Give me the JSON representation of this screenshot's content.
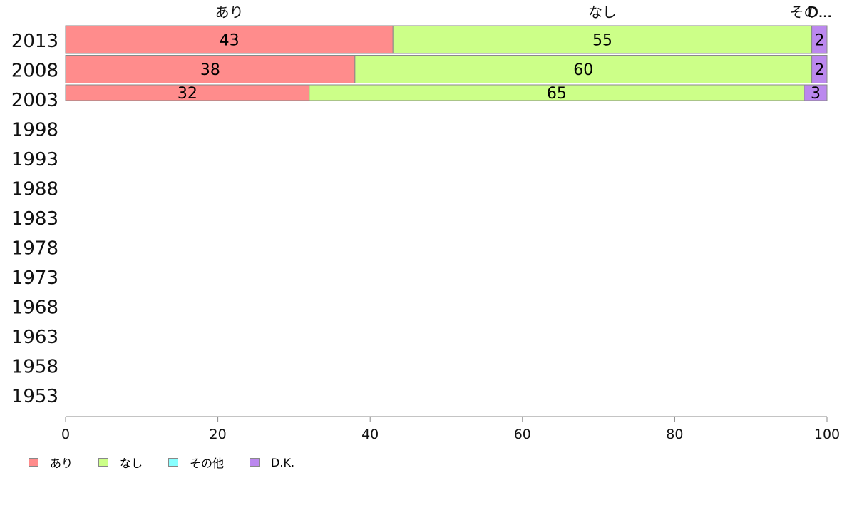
{
  "chart_data": {
    "type": "bar",
    "orientation": "horizontal",
    "stacked": true,
    "categories": [
      "2013",
      "2008",
      "2003",
      "1998",
      "1993",
      "1988",
      "1983",
      "1978",
      "1973",
      "1968",
      "1963",
      "1958",
      "1953"
    ],
    "series": [
      {
        "name": "あり",
        "color": "#ff8c8c",
        "values": [
          43,
          38,
          32,
          null,
          null,
          null,
          null,
          null,
          null,
          null,
          null,
          null,
          null
        ],
        "labels": [
          "43",
          "38",
          "32"
        ]
      },
      {
        "name": "なし",
        "color": "#ccff88",
        "values": [
          55,
          60,
          65,
          null,
          null,
          null,
          null,
          null,
          null,
          null,
          null,
          null,
          null
        ],
        "labels": [
          "55",
          "60",
          "65"
        ]
      },
      {
        "name": "その他",
        "color": "#88ffff",
        "values": [
          0,
          0,
          0,
          null,
          null,
          null,
          null,
          null,
          null,
          null,
          null,
          null,
          null
        ],
        "labels": []
      },
      {
        "name": "D.K.",
        "color": "#bb88ee",
        "values": [
          2,
          2,
          3,
          null,
          null,
          null,
          null,
          null,
          null,
          null,
          null,
          null,
          null
        ],
        "labels": [
          "2",
          "2",
          "3"
        ]
      }
    ],
    "top_labels": [
      "あり",
      "なし",
      "その...",
      "D..."
    ],
    "xlim": [
      0,
      100
    ],
    "xticks": [
      0,
      20,
      40,
      60,
      80,
      100
    ],
    "grid": false,
    "legend_position": "bottom-left"
  }
}
